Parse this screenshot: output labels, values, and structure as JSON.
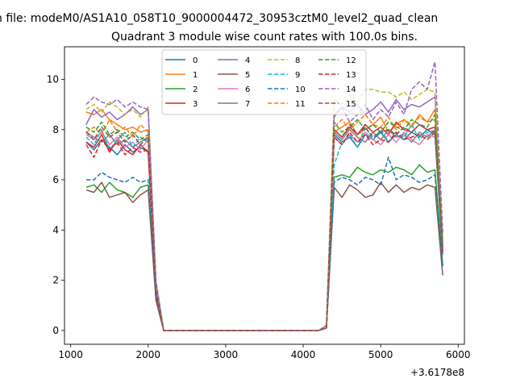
{
  "figure": {
    "suptitle": "n file: modeM0/AS1A10_058T10_9000004472_30953cztM0_level2_quad_clean",
    "offset_label": "+3.6178e8"
  },
  "chart_data": {
    "type": "line",
    "title": "Quadrant 3 module wise count rates with 100.0s bins.",
    "xlabel": "",
    "ylabel": "",
    "xlim": [
      920,
      6080
    ],
    "ylim": [
      -0.55,
      11.3
    ],
    "x_offset": 361780000,
    "xticks": [
      1000,
      2000,
      3000,
      4000,
      5000,
      6000
    ],
    "yticks": [
      0,
      2,
      4,
      6,
      8,
      10
    ],
    "grid": false,
    "legend": {
      "placement": "top-center",
      "columns": 4
    },
    "x": [
      1200,
      1300,
      1400,
      1500,
      1600,
      1700,
      1800,
      1900,
      2000,
      2100,
      2200,
      2300,
      2400,
      2500,
      2600,
      2700,
      2800,
      2900,
      3000,
      3100,
      3200,
      3300,
      3400,
      3500,
      3600,
      3700,
      3800,
      3900,
      4000,
      4100,
      4200,
      4300,
      4400,
      4500,
      4600,
      4700,
      4800,
      4900,
      5000,
      5100,
      5200,
      5300,
      5400,
      5500,
      5600,
      5700,
      5800
    ],
    "series": [
      {
        "name": "0",
        "color": "#1f77b4",
        "dash": "solid",
        "values": [
          7.5,
          7.2,
          7.6,
          7.3,
          7.0,
          7.4,
          7.1,
          7.3,
          7.1,
          1.5,
          0,
          0,
          0,
          0,
          0,
          0,
          0,
          0,
          0,
          0,
          0,
          0,
          0,
          0,
          0,
          0,
          0,
          0,
          0,
          0,
          0,
          0.1,
          7.8,
          7.5,
          7.7,
          7.3,
          7.8,
          7.6,
          7.9,
          7.5,
          7.8,
          7.6,
          7.9,
          7.7,
          8.0,
          7.8,
          3.0
        ]
      },
      {
        "name": "1",
        "color": "#ff7f0e",
        "dash": "solid",
        "values": [
          8.7,
          8.6,
          8.8,
          8.4,
          8.2,
          8.0,
          8.1,
          7.9,
          8.0,
          1.7,
          0,
          0,
          0,
          0,
          0,
          0,
          0,
          0,
          0,
          0,
          0,
          0,
          0,
          0,
          0,
          0,
          0,
          0,
          0,
          0,
          0,
          0.2,
          7.9,
          8.1,
          8.3,
          7.8,
          8.0,
          8.2,
          8.5,
          7.9,
          8.2,
          8.4,
          8.1,
          8.6,
          8.3,
          8.8,
          3.4
        ]
      },
      {
        "name": "2",
        "color": "#2ca02c",
        "dash": "solid",
        "values": [
          5.7,
          5.8,
          5.5,
          5.9,
          5.6,
          5.5,
          5.3,
          5.7,
          5.8,
          1.3,
          0,
          0,
          0,
          0,
          0,
          0,
          0,
          0,
          0,
          0,
          0,
          0,
          0,
          0,
          0,
          0,
          0,
          0,
          0,
          0,
          0,
          0.1,
          6.1,
          6.2,
          6.1,
          6.5,
          6.3,
          6.2,
          6.4,
          6.3,
          6.5,
          6.4,
          6.2,
          6.6,
          6.3,
          6.4,
          2.6
        ]
      },
      {
        "name": "3",
        "color": "#d62728",
        "dash": "solid",
        "values": [
          7.5,
          7.3,
          7.8,
          7.1,
          7.6,
          7.2,
          7.0,
          7.4,
          7.1,
          1.5,
          0,
          0,
          0,
          0,
          0,
          0,
          0,
          0,
          0,
          0,
          0,
          0,
          0,
          0,
          0,
          0,
          0,
          0,
          0,
          0,
          0,
          0.1,
          8.0,
          7.7,
          8.1,
          7.8,
          8.2,
          7.9,
          8.1,
          7.8,
          8.3,
          8.0,
          7.9,
          8.2,
          8.0,
          8.1,
          3.2
        ]
      },
      {
        "name": "4",
        "color": "#9467bd",
        "dash": "solid",
        "values": [
          8.2,
          8.8,
          8.5,
          8.7,
          8.4,
          8.6,
          8.9,
          8.6,
          8.8,
          1.9,
          0,
          0,
          0,
          0,
          0,
          0,
          0,
          0,
          0,
          0,
          0,
          0,
          0,
          0,
          0,
          0,
          0,
          0,
          0,
          0,
          0,
          0.2,
          8.6,
          8.9,
          8.7,
          9.0,
          8.6,
          8.8,
          9.1,
          8.7,
          9.2,
          8.8,
          9.0,
          8.9,
          9.1,
          9.3,
          3.5
        ]
      },
      {
        "name": "5",
        "color": "#8c564b",
        "dash": "solid",
        "values": [
          5.6,
          5.5,
          5.9,
          5.3,
          5.4,
          5.5,
          5.1,
          5.4,
          5.6,
          1.2,
          0,
          0,
          0,
          0,
          0,
          0,
          0,
          0,
          0,
          0,
          0,
          0,
          0,
          0,
          0,
          0,
          0,
          0,
          0,
          0,
          0,
          0.1,
          5.7,
          5.3,
          5.8,
          5.6,
          5.3,
          5.4,
          5.9,
          5.5,
          5.8,
          5.5,
          5.7,
          5.6,
          5.8,
          5.7,
          2.2
        ]
      },
      {
        "name": "6",
        "color": "#e377c2",
        "dash": "solid",
        "values": [
          7.8,
          7.6,
          7.9,
          7.4,
          7.7,
          7.3,
          7.5,
          7.2,
          7.6,
          1.6,
          0,
          0,
          0,
          0,
          0,
          0,
          0,
          0,
          0,
          0,
          0,
          0,
          0,
          0,
          0,
          0,
          0,
          0,
          0,
          0,
          0,
          0.1,
          7.7,
          7.4,
          7.8,
          7.5,
          7.9,
          7.6,
          7.4,
          7.8,
          7.5,
          7.9,
          7.6,
          7.4,
          7.8,
          7.7,
          3.1
        ]
      },
      {
        "name": "7",
        "color": "#7f7f7f",
        "dash": "solid",
        "values": [
          7.9,
          7.7,
          7.5,
          7.8,
          7.4,
          7.6,
          7.3,
          7.5,
          7.7,
          1.6,
          0,
          0,
          0,
          0,
          0,
          0,
          0,
          0,
          0,
          0,
          0,
          0,
          0,
          0,
          0,
          0,
          0,
          0,
          0,
          0,
          0,
          0.1,
          7.9,
          7.6,
          8.0,
          7.7,
          7.5,
          7.9,
          7.6,
          8.0,
          7.7,
          7.8,
          7.5,
          7.9,
          7.7,
          8.0,
          3.2
        ]
      },
      {
        "name": "8",
        "color": "#bcbd22",
        "dash": "dashed",
        "values": [
          8.8,
          9.0,
          8.7,
          9.1,
          8.9,
          8.6,
          8.8,
          8.5,
          8.9,
          1.9,
          0,
          0,
          0,
          0,
          0,
          0,
          0,
          0,
          0,
          0,
          0,
          0,
          0,
          0,
          0,
          0,
          0,
          0,
          0,
          0,
          0,
          0.2,
          9.2,
          9.0,
          9.4,
          9.1,
          9.6,
          9.6,
          9.5,
          9.5,
          9.3,
          9.5,
          9.2,
          9.4,
          9.6,
          9.5,
          3.7
        ]
      },
      {
        "name": "9",
        "color": "#17becf",
        "dash": "dashed",
        "values": [
          7.7,
          7.4,
          8.0,
          7.2,
          7.6,
          7.9,
          7.3,
          7.7,
          7.5,
          1.6,
          0,
          0,
          0,
          0,
          0,
          0,
          0,
          0,
          0,
          0,
          0,
          0,
          0,
          0,
          0,
          0,
          0,
          0,
          0,
          0,
          0,
          0.1,
          6.6,
          7.5,
          7.8,
          7.3,
          8.1,
          7.6,
          8.0,
          7.5,
          7.9,
          7.7,
          8.2,
          7.6,
          7.9,
          7.8,
          3.0
        ]
      },
      {
        "name": "10",
        "color": "#1f77b4",
        "dash": "dashed",
        "values": [
          6.0,
          6.0,
          6.3,
          6.1,
          6.0,
          5.9,
          6.1,
          5.9,
          6.0,
          1.3,
          0,
          0,
          0,
          0,
          0,
          0,
          0,
          0,
          0,
          0,
          0,
          0,
          0,
          0,
          0,
          0,
          0,
          0,
          0,
          0,
          0,
          0.1,
          5.9,
          6.1,
          6.0,
          5.8,
          6.1,
          6.0,
          5.8,
          6.9,
          6.0,
          6.2,
          6.1,
          5.9,
          6.0,
          6.2,
          2.5
        ]
      },
      {
        "name": "11",
        "color": "#ff7f0e",
        "dash": "dashed",
        "values": [
          7.9,
          8.1,
          7.8,
          8.4,
          7.9,
          8.1,
          7.7,
          8.2,
          7.9,
          1.7,
          0,
          0,
          0,
          0,
          0,
          0,
          0,
          0,
          0,
          0,
          0,
          0,
          0,
          0,
          0,
          0,
          0,
          0,
          0,
          0,
          0,
          0.2,
          8.1,
          8.4,
          8.0,
          8.3,
          8.6,
          8.2,
          8.1,
          8.5,
          8.0,
          8.4,
          8.2,
          8.5,
          8.3,
          8.4,
          3.3
        ]
      },
      {
        "name": "12",
        "color": "#2ca02c",
        "dash": "dashed",
        "values": [
          8.1,
          7.9,
          8.3,
          7.8,
          8.0,
          7.7,
          7.9,
          7.6,
          7.8,
          1.7,
          0,
          0,
          0,
          0,
          0,
          0,
          0,
          0,
          0,
          0,
          0,
          0,
          0,
          0,
          0,
          0,
          0,
          0,
          0,
          0,
          0,
          0.1,
          8.3,
          7.9,
          8.1,
          8.4,
          8.0,
          8.2,
          7.9,
          8.3,
          8.1,
          8.0,
          8.4,
          8.2,
          8.1,
          8.6,
          3.3
        ]
      },
      {
        "name": "13",
        "color": "#d62728",
        "dash": "dashed",
        "values": [
          7.4,
          6.9,
          7.6,
          7.2,
          7.5,
          7.0,
          7.3,
          7.1,
          7.2,
          1.5,
          0,
          0,
          0,
          0,
          0,
          0,
          0,
          0,
          0,
          0,
          0,
          0,
          0,
          0,
          0,
          0,
          0,
          0,
          0,
          0,
          0,
          0.1,
          7.7,
          7.4,
          7.9,
          7.5,
          7.8,
          7.4,
          7.6,
          7.5,
          7.9,
          7.6,
          7.7,
          7.8,
          7.6,
          7.9,
          3.1
        ]
      },
      {
        "name": "14",
        "color": "#9467bd",
        "dash": "dashed",
        "values": [
          9.0,
          9.3,
          9.1,
          9.0,
          9.2,
          8.9,
          9.1,
          8.9,
          8.8,
          2.0,
          0,
          0,
          0,
          0,
          0,
          0,
          0,
          0,
          0,
          0,
          0,
          0,
          0,
          0,
          0,
          0,
          0,
          0,
          0,
          0,
          0,
          0.2,
          8.5,
          8.9,
          8.3,
          8.6,
          9.0,
          8.4,
          8.8,
          8.5,
          9.1,
          8.6,
          9.6,
          9.9,
          9.6,
          10.7,
          3.9
        ]
      },
      {
        "name": "15",
        "color": "#8c564b",
        "dash": "dashed",
        "values": [
          7.9,
          7.6,
          8.1,
          7.7,
          7.9,
          7.5,
          7.8,
          7.4,
          7.7,
          1.6,
          0,
          0,
          0,
          0,
          0,
          0,
          0,
          0,
          0,
          0,
          0,
          0,
          0,
          0,
          0,
          0,
          0,
          0,
          0,
          0,
          0,
          0.1,
          8.0,
          7.7,
          8.2,
          7.8,
          8.1,
          7.7,
          7.9,
          8.0,
          7.8,
          8.1,
          7.9,
          8.2,
          8.0,
          7.9,
          3.2
        ]
      }
    ]
  }
}
